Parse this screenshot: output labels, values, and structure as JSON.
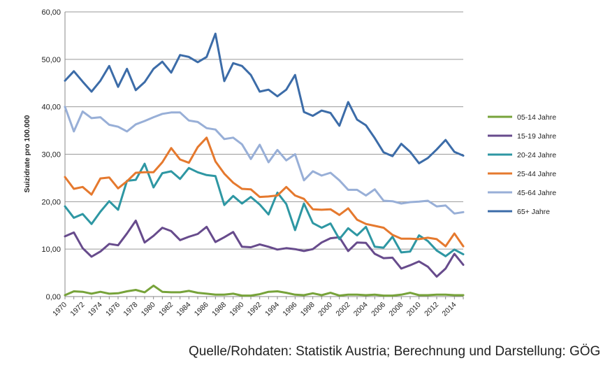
{
  "chart_data": {
    "type": "line",
    "title": "",
    "xlabel": "",
    "ylabel": "Suizidrate pro 100.000",
    "ylim": [
      0,
      60
    ],
    "yticks": [
      "0,00",
      "10,00",
      "20,00",
      "30,00",
      "40,00",
      "50,00",
      "60,00"
    ],
    "ytick_values": [
      0,
      10,
      20,
      30,
      40,
      50,
      60
    ],
    "grid": "horizontal",
    "legend_position": "right",
    "x": [
      1970,
      1971,
      1972,
      1973,
      1974,
      1975,
      1976,
      1977,
      1978,
      1979,
      1980,
      1981,
      1982,
      1983,
      1984,
      1985,
      1986,
      1987,
      1988,
      1989,
      1990,
      1991,
      1992,
      1993,
      1994,
      1995,
      1996,
      1997,
      1998,
      1999,
      2000,
      2001,
      2002,
      2003,
      2004,
      2005,
      2006,
      2007,
      2008,
      2009,
      2010,
      2011,
      2012,
      2013,
      2014,
      2015
    ],
    "xtick_labels": [
      "1970",
      "1972",
      "1974",
      "1976",
      "1978",
      "1980",
      "1982",
      "1984",
      "1986",
      "1988",
      "1990",
      "1992",
      "1994",
      "1996",
      "1998",
      "2000",
      "2002",
      "2004",
      "2006",
      "2008",
      "2010",
      "2012",
      "2014"
    ],
    "series": [
      {
        "name": "05-14 Jahre",
        "color": "#77a33a",
        "values": [
          0.3,
          1.1,
          1.0,
          0.6,
          1.0,
          0.6,
          0.7,
          1.1,
          1.4,
          0.9,
          2.3,
          1.0,
          0.9,
          0.9,
          1.2,
          0.8,
          0.6,
          0.4,
          0.4,
          0.6,
          0.2,
          0.2,
          0.5,
          1.0,
          1.1,
          0.8,
          0.4,
          0.3,
          0.7,
          0.3,
          0.8,
          0.2,
          0.4,
          0.4,
          0.3,
          0.4,
          0.2,
          0.2,
          0.4,
          0.8,
          0.3,
          0.3,
          0.4,
          0.4,
          0.3,
          0.3
        ]
      },
      {
        "name": "15-19 Jahre",
        "color": "#674b8c",
        "values": [
          12.7,
          13.5,
          10.2,
          8.4,
          9.5,
          11.1,
          10.8,
          13.3,
          16.0,
          11.4,
          12.8,
          14.5,
          13.8,
          11.9,
          12.6,
          13.2,
          14.7,
          11.5,
          12.5,
          13.6,
          10.5,
          10.4,
          11.0,
          10.5,
          9.9,
          10.2,
          10.0,
          9.6,
          10.0,
          11.4,
          12.3,
          12.5,
          9.6,
          11.4,
          11.3,
          9.0,
          8.1,
          8.2,
          5.9,
          6.6,
          7.4,
          6.3,
          4.2,
          5.9,
          9.0,
          6.7
        ]
      },
      {
        "name": "20-24 Jahre",
        "color": "#2e97a3",
        "values": [
          19.0,
          16.6,
          17.4,
          15.3,
          17.9,
          20.1,
          18.3,
          24.4,
          24.6,
          28.0,
          23.0,
          26.0,
          26.4,
          24.8,
          27.1,
          26.2,
          25.6,
          25.4,
          19.3,
          21.2,
          19.6,
          21.0,
          19.4,
          17.3,
          21.9,
          19.5,
          14.0,
          19.6,
          15.5,
          14.5,
          15.4,
          12.1,
          14.4,
          12.9,
          14.7,
          10.5,
          10.3,
          12.6,
          9.3,
          9.5,
          12.9,
          11.7,
          9.7,
          8.5,
          9.9,
          8.9
        ]
      },
      {
        "name": "25-44 Jahre",
        "color": "#e5792e",
        "values": [
          25.2,
          22.7,
          23.1,
          21.5,
          24.9,
          25.1,
          22.8,
          24.3,
          26.1,
          26.2,
          26.2,
          28.3,
          31.3,
          28.9,
          28.2,
          31.5,
          33.5,
          28.5,
          25.9,
          24.0,
          22.7,
          22.6,
          21.0,
          21.1,
          21.3,
          23.1,
          21.3,
          20.6,
          18.4,
          18.3,
          18.4,
          17.2,
          18.6,
          16.2,
          15.3,
          14.9,
          14.5,
          13.0,
          12.2,
          12.2,
          12.1,
          12.4,
          12.1,
          10.6,
          13.3,
          10.6
        ]
      },
      {
        "name": "45-64 Jahre",
        "color": "#98afd7",
        "values": [
          40.0,
          34.8,
          39.0,
          37.6,
          37.8,
          36.2,
          35.8,
          34.8,
          36.3,
          37.0,
          37.8,
          38.5,
          38.8,
          38.8,
          37.1,
          36.8,
          35.5,
          35.2,
          33.2,
          33.5,
          32.1,
          29.0,
          32.0,
          28.3,
          30.9,
          28.7,
          30.0,
          24.5,
          26.4,
          25.5,
          26.1,
          24.5,
          22.5,
          22.5,
          21.3,
          22.6,
          20.2,
          20.1,
          19.6,
          19.9,
          20.0,
          20.2,
          19.0,
          19.2,
          17.5,
          17.8
        ]
      },
      {
        "name": "65+ Jahre",
        "color": "#3c6ca8",
        "values": [
          45.5,
          47.5,
          45.3,
          43.2,
          45.5,
          48.6,
          44.2,
          48.0,
          43.5,
          45.2,
          48.0,
          49.5,
          47.2,
          50.9,
          50.5,
          49.4,
          50.5,
          55.4,
          45.4,
          49.2,
          48.6,
          46.7,
          43.2,
          43.6,
          42.2,
          43.6,
          46.7,
          38.9,
          38.1,
          39.2,
          38.7,
          36.0,
          41.0,
          37.3,
          36.1,
          33.4,
          30.4,
          29.6,
          32.2,
          30.5,
          28.1,
          29.2,
          31.0,
          33.0,
          30.5,
          29.7
        ]
      }
    ]
  },
  "source_note": "Quelle/Rohdaten: Statistik Austria; Berechnung und Darstellung: GÖG"
}
